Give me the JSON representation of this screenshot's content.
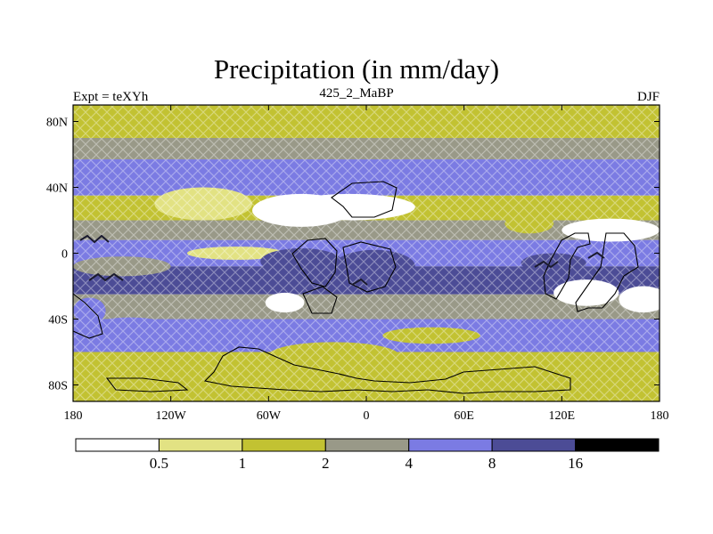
{
  "chart_data": {
    "type": "heatmap",
    "title": "Precipitation (in mm/day)",
    "subtitle_left": "Expt = teXYh",
    "subtitle_center": "425_2_MaBP",
    "subtitle_right": "DJF",
    "x_ticks": [
      "180",
      "120W",
      "60W",
      "0",
      "60E",
      "120E",
      "180"
    ],
    "x_tick_values": [
      -180,
      -120,
      -60,
      0,
      60,
      120,
      180
    ],
    "y_ticks": [
      "80N",
      "40N",
      "0",
      "40S",
      "80S"
    ],
    "y_tick_values": [
      80,
      40,
      0,
      -40,
      -80
    ],
    "xlim": [
      -180,
      180
    ],
    "ylim": [
      -90,
      90
    ],
    "colorbar": {
      "levels": [
        "0.5",
        "1",
        "2",
        "4",
        "8",
        "16"
      ],
      "colors": [
        "#ffffff",
        "#e2e283",
        "#c2c232",
        "#999988",
        "#7b7be3",
        "#4c4c96",
        "#000000"
      ]
    },
    "zonal_bands": [
      {
        "lat": [
          70,
          90
        ],
        "value": 1.2
      },
      {
        "lat": [
          57,
          70
        ],
        "value": 3.0
      },
      {
        "lat": [
          35,
          57
        ],
        "value": 6.0
      },
      {
        "lat": [
          20,
          35
        ],
        "value": 1.5
      },
      {
        "lat": [
          8,
          20
        ],
        "value": 3.0
      },
      {
        "lat": [
          -8,
          8
        ],
        "value": 7.0
      },
      {
        "lat": [
          -25,
          -8
        ],
        "value": 9.0
      },
      {
        "lat": [
          -40,
          -25
        ],
        "value": 2.5
      },
      {
        "lat": [
          -60,
          -40
        ],
        "value": 4.5
      },
      {
        "lat": [
          -80,
          -60
        ],
        "value": 1.8
      },
      {
        "lat": [
          -90,
          -80
        ],
        "value": 1.0
      }
    ]
  }
}
